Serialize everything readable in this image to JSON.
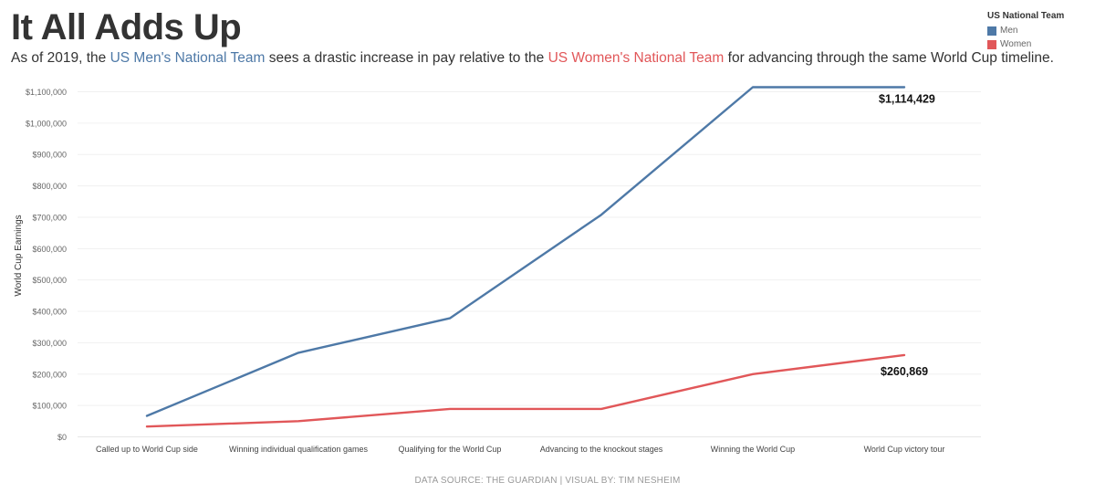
{
  "header": {
    "title": "It All Adds Up",
    "subtitle_pre": "As of 2019, the ",
    "subtitle_men": "US Men's National Team",
    "subtitle_mid": " sees a drastic increase in pay relative to the ",
    "subtitle_women": "US Women's National Team",
    "subtitle_post": " for advancing through the same World Cup timeline."
  },
  "legend": {
    "title": "US National Team",
    "items": [
      {
        "label": "Men",
        "color": "#4e79a7"
      },
      {
        "label": "Women",
        "color": "#e15759"
      }
    ]
  },
  "footer": {
    "text": "DATA SOURCE: THE GUARDIAN | VISUAL BY: TIM NESHEIM"
  },
  "chart_data": {
    "type": "line",
    "title": "It All Adds Up",
    "xlabel": "",
    "ylabel": "World Cup Earnings",
    "ylim": [
      0,
      1150000
    ],
    "yticks": [
      0,
      100000,
      200000,
      300000,
      400000,
      500000,
      600000,
      700000,
      800000,
      900000,
      1000000,
      1100000
    ],
    "ytick_labels": [
      "$0",
      "$100,000",
      "$200,000",
      "$300,000",
      "$400,000",
      "$500,000",
      "$600,000",
      "$700,000",
      "$800,000",
      "$900,000",
      "$1,000,000",
      "$1,100,000"
    ],
    "categories": [
      "Called up to World Cup side",
      "Winning individual qualification games",
      "Qualifying for the World Cup",
      "Advancing to the knockout stages",
      "Winning the World Cup",
      "World Cup victory tour"
    ],
    "grid": true,
    "legend_position": "top-right",
    "series": [
      {
        "name": "Men",
        "color": "#4e79a7",
        "values": [
          67000,
          268000,
          378000,
          708000,
          1114429,
          1114429
        ],
        "end_label": "$1,114,429"
      },
      {
        "name": "Women",
        "color": "#e15759",
        "values": [
          33000,
          50000,
          89000,
          89000,
          200000,
          260869
        ],
        "end_label": "$260,869"
      }
    ]
  }
}
